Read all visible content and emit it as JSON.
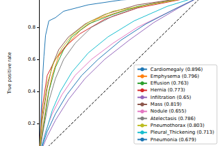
{
  "chart_data": {
    "type": "line",
    "y_label": "True positive rate",
    "xlim": [
      0,
      1.08
    ],
    "ylim": [
      0.06,
      0.97
    ],
    "yticks": [
      0.2,
      0.4,
      0.6,
      0.8
    ],
    "tick_labels": "y",
    "grid": false,
    "legend": "lower right",
    "series": [
      {
        "name": "Cardiomegaly (0.896)",
        "color": "#1f77b4",
        "values": [
          [
            0,
            0
          ],
          [
            0.01,
            0.2
          ],
          [
            0.02,
            0.45
          ],
          [
            0.03,
            0.62
          ],
          [
            0.04,
            0.75
          ],
          [
            0.06,
            0.84
          ],
          [
            0.1,
            0.86
          ],
          [
            0.15,
            0.9
          ],
          [
            0.3,
            0.94
          ],
          [
            0.5,
            0.97
          ],
          [
            1,
            1
          ]
        ]
      },
      {
        "name": "Emphysema (0.796)",
        "color": "#ff7f0e",
        "values": [
          [
            0,
            0
          ],
          [
            0.02,
            0.15
          ],
          [
            0.05,
            0.35
          ],
          [
            0.08,
            0.5
          ],
          [
            0.12,
            0.62
          ],
          [
            0.18,
            0.7
          ],
          [
            0.25,
            0.78
          ],
          [
            0.35,
            0.85
          ],
          [
            0.5,
            0.9
          ],
          [
            0.7,
            0.95
          ],
          [
            1,
            1
          ]
        ]
      },
      {
        "name": "Effusion (0.763)",
        "color": "#2ca02c",
        "values": [
          [
            0,
            0
          ],
          [
            0.03,
            0.2
          ],
          [
            0.06,
            0.4
          ],
          [
            0.1,
            0.55
          ],
          [
            0.15,
            0.66
          ],
          [
            0.2,
            0.74
          ],
          [
            0.3,
            0.82
          ],
          [
            0.45,
            0.88
          ],
          [
            0.6,
            0.93
          ],
          [
            1,
            1
          ]
        ]
      },
      {
        "name": "Hernia (0.773)",
        "color": "#d62728",
        "values": [
          [
            0,
            0
          ],
          [
            0.02,
            0.3
          ],
          [
            0.05,
            0.5
          ],
          [
            0.1,
            0.6
          ],
          [
            0.16,
            0.68
          ],
          [
            0.25,
            0.76
          ],
          [
            0.4,
            0.85
          ],
          [
            0.6,
            0.92
          ],
          [
            1,
            1
          ]
        ]
      },
      {
        "name": "Infiltration (0.65)",
        "color": "#9467bd",
        "values": [
          [
            0,
            0
          ],
          [
            0.05,
            0.12
          ],
          [
            0.1,
            0.22
          ],
          [
            0.18,
            0.35
          ],
          [
            0.28,
            0.48
          ],
          [
            0.4,
            0.6
          ],
          [
            0.55,
            0.72
          ],
          [
            0.7,
            0.83
          ],
          [
            0.85,
            0.92
          ],
          [
            1,
            1
          ]
        ]
      },
      {
        "name": "Mass (0.819)",
        "color": "#8c564b",
        "values": [
          [
            0,
            0
          ],
          [
            0.02,
            0.22
          ],
          [
            0.05,
            0.42
          ],
          [
            0.08,
            0.56
          ],
          [
            0.12,
            0.66
          ],
          [
            0.18,
            0.74
          ],
          [
            0.28,
            0.82
          ],
          [
            0.4,
            0.88
          ],
          [
            0.6,
            0.94
          ],
          [
            1,
            1
          ]
        ]
      },
      {
        "name": "Nodule (0.655)",
        "color": "#e377c2",
        "values": [
          [
            0,
            0
          ],
          [
            0.04,
            0.15
          ],
          [
            0.08,
            0.26
          ],
          [
            0.14,
            0.38
          ],
          [
            0.22,
            0.5
          ],
          [
            0.32,
            0.6
          ],
          [
            0.45,
            0.7
          ],
          [
            0.6,
            0.8
          ],
          [
            0.8,
            0.9
          ],
          [
            1,
            1
          ]
        ]
      },
      {
        "name": "Atelectasis (0.786)",
        "color": "#7f7f7f",
        "values": [
          [
            0,
            0
          ],
          [
            0.03,
            0.18
          ],
          [
            0.06,
            0.34
          ],
          [
            0.1,
            0.48
          ],
          [
            0.15,
            0.6
          ],
          [
            0.22,
            0.7
          ],
          [
            0.32,
            0.8
          ],
          [
            0.45,
            0.87
          ],
          [
            0.65,
            0.94
          ],
          [
            1,
            1
          ]
        ]
      },
      {
        "name": "Pneumothorax (0.803)",
        "color": "#bcbd22",
        "values": [
          [
            0,
            0
          ],
          [
            0.02,
            0.25
          ],
          [
            0.05,
            0.45
          ],
          [
            0.09,
            0.58
          ],
          [
            0.14,
            0.67
          ],
          [
            0.2,
            0.75
          ],
          [
            0.3,
            0.83
          ],
          [
            0.45,
            0.9
          ],
          [
            1,
            1
          ]
        ]
      },
      {
        "name": "Pleural_Thickening (0.713)",
        "color": "#17becf",
        "values": [
          [
            0,
            0
          ],
          [
            0.04,
            0.14
          ],
          [
            0.08,
            0.28
          ],
          [
            0.13,
            0.4
          ],
          [
            0.2,
            0.52
          ],
          [
            0.3,
            0.64
          ],
          [
            0.42,
            0.74
          ],
          [
            0.58,
            0.84
          ],
          [
            0.78,
            0.93
          ],
          [
            1,
            1
          ]
        ]
      },
      {
        "name": "Pneumonia (0.679)",
        "color": "#1f77b4",
        "values": [
          [
            0,
            0
          ],
          [
            0.05,
            0.15
          ],
          [
            0.1,
            0.26
          ],
          [
            0.17,
            0.38
          ],
          [
            0.26,
            0.5
          ],
          [
            0.36,
            0.6
          ],
          [
            0.5,
            0.72
          ],
          [
            0.65,
            0.82
          ],
          [
            0.82,
            0.91
          ],
          [
            1,
            1
          ]
        ]
      },
      {
        "color": "#000000",
        "line_style": "dashed",
        "values": [
          [
            0,
            0
          ],
          [
            1,
            1
          ]
        ]
      }
    ]
  }
}
